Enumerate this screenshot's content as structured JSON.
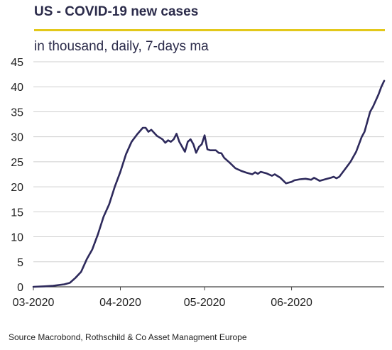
{
  "chart_data": {
    "type": "line",
    "title": "US - COVID-19 new cases",
    "subtitle": "in thousand, daily,  7-days ma",
    "source": "Source Macrobond, Rothschild & Co Asset Managment Europe",
    "xlabel": "",
    "ylabel": "",
    "x_ticks": [
      "03-2020",
      "04-2020",
      "05-2020",
      "06-2020"
    ],
    "y_ticks": [
      "0",
      "5",
      "10",
      "15",
      "20",
      "25",
      "30",
      "35",
      "40",
      "45"
    ],
    "ylim": [
      0,
      45
    ],
    "grid": "horizontal",
    "legend": "none",
    "series": [
      {
        "values": [
          [
            "2020-03-01",
            0.0
          ],
          [
            "2020-03-05",
            0.1
          ],
          [
            "2020-03-08",
            0.2
          ],
          [
            "2020-03-12",
            0.5
          ],
          [
            "2020-03-14",
            0.8
          ],
          [
            "2020-03-16",
            1.8
          ],
          [
            "2020-03-18",
            3.0
          ],
          [
            "2020-03-20",
            5.5
          ],
          [
            "2020-03-22",
            7.5
          ],
          [
            "2020-03-24",
            10.5
          ],
          [
            "2020-03-26",
            14.0
          ],
          [
            "2020-03-28",
            16.5
          ],
          [
            "2020-03-30",
            20.0
          ],
          [
            "2020-04-01",
            23.0
          ],
          [
            "2020-04-03",
            26.5
          ],
          [
            "2020-04-05",
            29.0
          ],
          [
            "2020-04-07",
            30.5
          ],
          [
            "2020-04-09",
            31.8
          ],
          [
            "2020-04-10",
            31.8
          ],
          [
            "2020-04-11",
            31.0
          ],
          [
            "2020-04-12",
            31.4
          ],
          [
            "2020-04-14",
            30.2
          ],
          [
            "2020-04-16",
            29.5
          ],
          [
            "2020-04-17",
            28.8
          ],
          [
            "2020-04-18",
            29.3
          ],
          [
            "2020-04-19",
            29.0
          ],
          [
            "2020-04-20",
            29.5
          ],
          [
            "2020-04-21",
            30.6
          ],
          [
            "2020-04-22",
            29.0
          ],
          [
            "2020-04-23",
            28.0
          ],
          [
            "2020-04-24",
            27.0
          ],
          [
            "2020-04-25",
            29.0
          ],
          [
            "2020-04-26",
            29.5
          ],
          [
            "2020-04-27",
            28.5
          ],
          [
            "2020-04-28",
            26.8
          ],
          [
            "2020-04-29",
            28.0
          ],
          [
            "2020-04-30",
            28.5
          ],
          [
            "2020-05-01",
            30.3
          ],
          [
            "2020-05-02",
            27.5
          ],
          [
            "2020-05-03",
            27.3
          ],
          [
            "2020-05-05",
            27.3
          ],
          [
            "2020-05-06",
            26.8
          ],
          [
            "2020-05-07",
            26.7
          ],
          [
            "2020-05-08",
            25.8
          ],
          [
            "2020-05-10",
            24.8
          ],
          [
            "2020-05-12",
            23.7
          ],
          [
            "2020-05-14",
            23.2
          ],
          [
            "2020-05-16",
            22.8
          ],
          [
            "2020-05-18",
            22.5
          ],
          [
            "2020-05-19",
            22.9
          ],
          [
            "2020-05-20",
            22.6
          ],
          [
            "2020-05-21",
            23.0
          ],
          [
            "2020-05-23",
            22.7
          ],
          [
            "2020-05-25",
            22.2
          ],
          [
            "2020-05-26",
            22.5
          ],
          [
            "2020-05-28",
            21.8
          ],
          [
            "2020-05-30",
            20.7
          ],
          [
            "2020-06-01",
            21.0
          ],
          [
            "2020-06-02",
            21.3
          ],
          [
            "2020-06-04",
            21.5
          ],
          [
            "2020-06-06",
            21.6
          ],
          [
            "2020-06-08",
            21.4
          ],
          [
            "2020-06-09",
            21.8
          ],
          [
            "2020-06-11",
            21.2
          ],
          [
            "2020-06-13",
            21.5
          ],
          [
            "2020-06-15",
            21.8
          ],
          [
            "2020-06-16",
            22.0
          ],
          [
            "2020-06-17",
            21.7
          ],
          [
            "2020-06-18",
            22.0
          ],
          [
            "2020-06-20",
            23.5
          ],
          [
            "2020-06-22",
            25.0
          ],
          [
            "2020-06-24",
            27.0
          ],
          [
            "2020-06-26",
            30.0
          ],
          [
            "2020-06-27",
            31.0
          ],
          [
            "2020-06-29",
            35.0
          ],
          [
            "2020-06-30",
            36.0
          ],
          [
            "2020-07-02",
            38.5
          ],
          [
            "2020-07-03",
            40.0
          ],
          [
            "2020-07-04",
            41.2
          ]
        ]
      }
    ]
  },
  "colors": {
    "line": "#2e2a5c",
    "accent": "#e3c81a",
    "grid": "#cfcfcf",
    "axis": "#444444",
    "text": "#222222"
  }
}
